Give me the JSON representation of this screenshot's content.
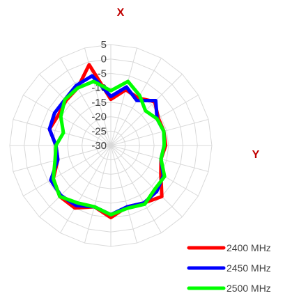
{
  "chart_data": {
    "type": "radar",
    "title": "",
    "top_label": "X",
    "right_label": "Y",
    "r_ticks": [
      -30,
      -25,
      -20,
      -15,
      -10,
      -5,
      0,
      5
    ],
    "r_tick_labels": [
      "-30",
      "-25",
      "-20",
      "-15",
      "-10",
      "-5",
      "0",
      "5"
    ],
    "rlim": [
      -30,
      5
    ],
    "grid": true,
    "legend_position": "bottom-right",
    "angles_deg": [
      0,
      15,
      30,
      45,
      60,
      75,
      90,
      105,
      120,
      135,
      150,
      165,
      180,
      195,
      210,
      225,
      240,
      255,
      270,
      285,
      300,
      315,
      330,
      345
    ],
    "series": [
      {
        "name": "2400 MHz",
        "color": "#ff0000",
        "values": [
          -14,
          -10,
          -11,
          -8.5,
          -11,
          -11,
          -11,
          -12,
          -10,
          -5,
          -7,
          -8,
          -5,
          -8,
          -5,
          -5,
          -7,
          -11,
          -11,
          -8,
          -9,
          -8,
          -7,
          -1
        ]
      },
      {
        "name": "2450 MHz",
        "color": "#0000ff",
        "values": [
          -13,
          -9,
          -12,
          -8,
          -11.5,
          -11,
          -11.5,
          -12,
          -9,
          -7.5,
          -7,
          -8,
          -6,
          -8,
          -6,
          -5.5,
          -6,
          -11,
          -11,
          -8,
          -7.5,
          -7.5,
          -6,
          -5
        ]
      },
      {
        "name": "2500 MHz",
        "color": "#00ff00",
        "values": [
          -11,
          -7,
          -10,
          -13,
          -11.5,
          -11,
          -11.5,
          -12,
          -8.5,
          -8.5,
          -6.5,
          -7.5,
          -6,
          -8,
          -7,
          -5,
          -7,
          -10,
          -11,
          -13,
          -10,
          -7.5,
          -7,
          -7
        ]
      }
    ]
  }
}
